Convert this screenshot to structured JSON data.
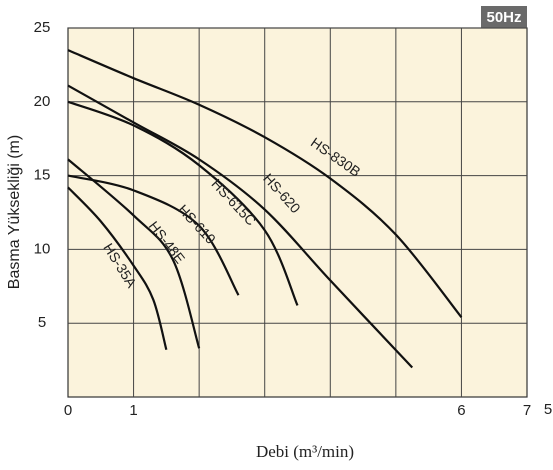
{
  "chart_data": {
    "type": "line",
    "badge": "50Hz",
    "xlabel": "Debi (m³/min)",
    "ylabel": "Basma Yüksekliği (m)",
    "xlim": [
      0,
      7
    ],
    "ylim": [
      0,
      25
    ],
    "xticks": [
      0,
      1,
      6,
      7
    ],
    "xgrid": [
      1,
      2,
      3,
      4,
      5,
      6
    ],
    "yticks": [
      5,
      10,
      15,
      20,
      25
    ],
    "annotations": [
      "5"
    ],
    "grid": true,
    "background": "#fbf3dc",
    "series": [
      {
        "name": "HS-830B",
        "color": "#111111",
        "x": [
          0,
          1,
          2,
          3,
          4,
          5,
          6
        ],
        "values": [
          23.5,
          21.6,
          19.8,
          17.6,
          14.8,
          11,
          5.4
        ]
      },
      {
        "name": "HS-620",
        "color": "#111111",
        "x": [
          0,
          1,
          2,
          3,
          4,
          5.25
        ],
        "values": [
          21.1,
          18.6,
          16.1,
          12.7,
          7.9,
          2
        ]
      },
      {
        "name": "HS-615C",
        "color": "#111111",
        "x": [
          0,
          1,
          2,
          3,
          3.5
        ],
        "values": [
          20,
          18.4,
          15.7,
          11.3,
          6.2
        ]
      },
      {
        "name": "HS-610",
        "color": "#111111",
        "x": [
          0,
          1,
          2,
          2.6
        ],
        "values": [
          15,
          14,
          11.6,
          6.9
        ]
      },
      {
        "name": "HS-48E",
        "color": "#111111",
        "x": [
          0,
          1,
          1.6,
          2
        ],
        "values": [
          16.1,
          12.3,
          9.3,
          3.3
        ]
      },
      {
        "name": "HS-35A",
        "color": "#111111",
        "x": [
          0,
          0.5,
          1,
          1.3,
          1.5
        ],
        "values": [
          14.2,
          11.9,
          8.9,
          6.6,
          3.2
        ]
      }
    ]
  }
}
